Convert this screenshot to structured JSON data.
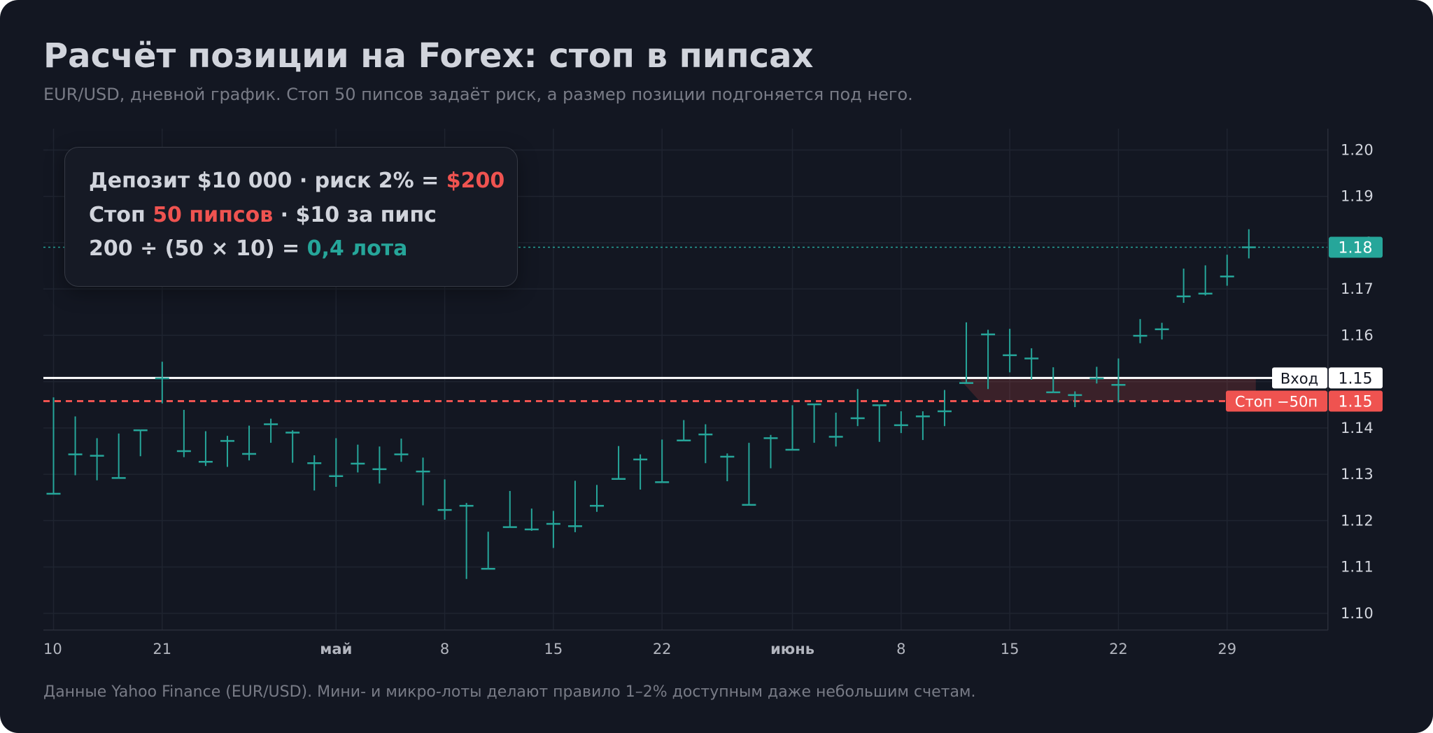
{
  "title": "Расчёт позиции на Forex: стоп в пипсах",
  "subtitle": "EUR/USD, дневной график. Стоп 50 пипсов задаёт риск, а размер позиции подгоняется под него.",
  "footer": "Данные Yahoo Finance (EUR/USD). Мини- и микро-лоты делают правило 1–2% доступным даже небольшим счетам.",
  "info": {
    "line1_prefix": "Депозит $10 000 · риск 2% = ",
    "line1_value": "$200",
    "line2_prefix": "Стоп ",
    "line2_value": "50 пипсов",
    "line2_suffix": " · $10 за пипс",
    "line3_prefix": "200 ÷ (50 × 10) = ",
    "line3_value": "0,4 лота"
  },
  "colors": {
    "background": "#131722",
    "candle": "#26a69a",
    "stop": "#ef5350",
    "entry": "#ffffff",
    "grid": "#1f2430"
  },
  "chart_data": {
    "type": "ohlc",
    "x_tick_labels": [
      {
        "label": "10",
        "bold": false
      },
      {
        "label": "21",
        "bold": false
      },
      {
        "label": "май",
        "bold": true
      },
      {
        "label": "8",
        "bold": false
      },
      {
        "label": "15",
        "bold": false
      },
      {
        "label": "22",
        "bold": false
      },
      {
        "label": "июнь",
        "bold": true
      },
      {
        "label": "8",
        "bold": false
      },
      {
        "label": "15",
        "bold": false
      },
      {
        "label": "22",
        "bold": false
      },
      {
        "label": "29",
        "bold": false
      }
    ],
    "y_ticks": [
      "1.10",
      "1.11",
      "1.12",
      "1.13",
      "1.14",
      "1.15",
      "1.16",
      "1.17",
      "1.18",
      "1.19",
      "1.20"
    ],
    "ylim": [
      1.0965,
      1.2046
    ],
    "grid": true,
    "candles": [
      {
        "o": 1.1258,
        "h": 1.1466,
        "l": 1.1258,
        "c": 1.1258
      },
      {
        "o": 1.1343,
        "h": 1.1425,
        "l": 1.1298,
        "c": 1.1343
      },
      {
        "o": 1.134,
        "h": 1.1378,
        "l": 1.1287,
        "c": 1.134
      },
      {
        "o": 1.1292,
        "h": 1.1388,
        "l": 1.1292,
        "c": 1.1292
      },
      {
        "o": 1.1395,
        "h": 1.1395,
        "l": 1.1339,
        "c": 1.1395
      },
      {
        "o": 1.1507,
        "h": 1.1543,
        "l": 1.1453,
        "c": 1.1507
      },
      {
        "o": 1.135,
        "h": 1.1439,
        "l": 1.1337,
        "c": 1.135
      },
      {
        "o": 1.1327,
        "h": 1.1393,
        "l": 1.1318,
        "c": 1.1327
      },
      {
        "o": 1.1372,
        "h": 1.1383,
        "l": 1.1316,
        "c": 1.1372
      },
      {
        "o": 1.1344,
        "h": 1.1405,
        "l": 1.133,
        "c": 1.1344
      },
      {
        "o": 1.1408,
        "h": 1.142,
        "l": 1.1368,
        "c": 1.1408
      },
      {
        "o": 1.139,
        "h": 1.1395,
        "l": 1.1325,
        "c": 1.139
      },
      {
        "o": 1.1324,
        "h": 1.1341,
        "l": 1.1265,
        "c": 1.1324
      },
      {
        "o": 1.1296,
        "h": 1.1378,
        "l": 1.1273,
        "c": 1.1296
      },
      {
        "o": 1.1323,
        "h": 1.1364,
        "l": 1.1304,
        "c": 1.1323
      },
      {
        "o": 1.1311,
        "h": 1.136,
        "l": 1.128,
        "c": 1.1311
      },
      {
        "o": 1.1343,
        "h": 1.1377,
        "l": 1.1327,
        "c": 1.1343
      },
      {
        "o": 1.1306,
        "h": 1.1336,
        "l": 1.1233,
        "c": 1.1306
      },
      {
        "o": 1.1223,
        "h": 1.1289,
        "l": 1.1202,
        "c": 1.1223
      },
      {
        "o": 1.1232,
        "h": 1.1238,
        "l": 1.1074,
        "c": 1.1232
      },
      {
        "o": 1.1096,
        "h": 1.1176,
        "l": 1.1096,
        "c": 1.1096
      },
      {
        "o": 1.1186,
        "h": 1.1264,
        "l": 1.1186,
        "c": 1.1186
      },
      {
        "o": 1.1181,
        "h": 1.1226,
        "l": 1.1178,
        "c": 1.1181
      },
      {
        "o": 1.1193,
        "h": 1.1221,
        "l": 1.1141,
        "c": 1.1193
      },
      {
        "o": 1.1188,
        "h": 1.1286,
        "l": 1.1175,
        "c": 1.1188
      },
      {
        "o": 1.1232,
        "h": 1.1277,
        "l": 1.1219,
        "c": 1.1232
      },
      {
        "o": 1.129,
        "h": 1.1361,
        "l": 1.129,
        "c": 1.129
      },
      {
        "o": 1.1332,
        "h": 1.1343,
        "l": 1.1267,
        "c": 1.1332
      },
      {
        "o": 1.1283,
        "h": 1.1375,
        "l": 1.1283,
        "c": 1.1283
      },
      {
        "o": 1.1373,
        "h": 1.1417,
        "l": 1.1373,
        "c": 1.1373
      },
      {
        "o": 1.1386,
        "h": 1.1408,
        "l": 1.1324,
        "c": 1.1386
      },
      {
        "o": 1.1338,
        "h": 1.1345,
        "l": 1.1285,
        "c": 1.1338
      },
      {
        "o": 1.1234,
        "h": 1.1368,
        "l": 1.1234,
        "c": 1.1234
      },
      {
        "o": 1.1378,
        "h": 1.1385,
        "l": 1.1313,
        "c": 1.1378
      },
      {
        "o": 1.1353,
        "h": 1.1449,
        "l": 1.1353,
        "c": 1.1353
      },
      {
        "o": 1.1451,
        "h": 1.1451,
        "l": 1.1368,
        "c": 1.1451
      },
      {
        "o": 1.1381,
        "h": 1.1433,
        "l": 1.136,
        "c": 1.1381
      },
      {
        "o": 1.1421,
        "h": 1.1484,
        "l": 1.1404,
        "c": 1.1421
      },
      {
        "o": 1.1449,
        "h": 1.1449,
        "l": 1.137,
        "c": 1.1449
      },
      {
        "o": 1.1406,
        "h": 1.1436,
        "l": 1.1389,
        "c": 1.1406
      },
      {
        "o": 1.1425,
        "h": 1.1436,
        "l": 1.1374,
        "c": 1.1425
      },
      {
        "o": 1.1436,
        "h": 1.1482,
        "l": 1.1404,
        "c": 1.1436
      },
      {
        "o": 1.1497,
        "h": 1.1628,
        "l": 1.1497,
        "c": 1.1497
      },
      {
        "o": 1.1602,
        "h": 1.1612,
        "l": 1.1484,
        "c": 1.1602
      },
      {
        "o": 1.1557,
        "h": 1.1614,
        "l": 1.152,
        "c": 1.1557
      },
      {
        "o": 1.155,
        "h": 1.1572,
        "l": 1.1504,
        "c": 1.155
      },
      {
        "o": 1.1477,
        "h": 1.1531,
        "l": 1.1477,
        "c": 1.1477
      },
      {
        "o": 1.1471,
        "h": 1.1479,
        "l": 1.1445,
        "c": 1.1471
      },
      {
        "o": 1.1507,
        "h": 1.1532,
        "l": 1.1496,
        "c": 1.1507
      },
      {
        "o": 1.1493,
        "h": 1.155,
        "l": 1.1455,
        "c": 1.1493
      },
      {
        "o": 1.1599,
        "h": 1.1635,
        "l": 1.1583,
        "c": 1.1599
      },
      {
        "o": 1.1613,
        "h": 1.1627,
        "l": 1.1591,
        "c": 1.1613
      },
      {
        "o": 1.1684,
        "h": 1.1744,
        "l": 1.167,
        "c": 1.1684
      },
      {
        "o": 1.169,
        "h": 1.1751,
        "l": 1.1686,
        "c": 1.169
      },
      {
        "o": 1.1727,
        "h": 1.1774,
        "l": 1.1707,
        "c": 1.1727
      },
      {
        "o": 1.179,
        "h": 1.1829,
        "l": 1.1766,
        "c": 1.179
      }
    ],
    "entry": {
      "label": "Вход",
      "price_label": "1.15",
      "value": 1.1508
    },
    "stop": {
      "label": "Стоп −50п",
      "price_label": "1.15",
      "value": 1.1458
    },
    "last_price": {
      "price_label": "1.18",
      "value": 1.179
    }
  }
}
